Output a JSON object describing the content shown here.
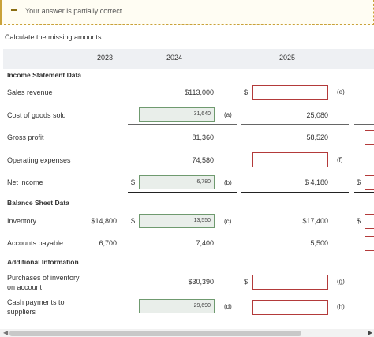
{
  "feedback": {
    "message": "Your answer is partially correct."
  },
  "instructions": "Calculate the missing amounts.",
  "columns": [
    "2023",
    "2024",
    "2025"
  ],
  "sections": {
    "income": "Income Statement Data",
    "balance": "Balance Sheet Data",
    "additional": "Additional Information"
  },
  "rows": {
    "sales": {
      "label": "Sales revenue",
      "v2024": "$113,000",
      "tag2025": "(e)"
    },
    "cogs": {
      "label": "Cost of goods sold",
      "v2024": "31,640",
      "tag2024": "(a)",
      "v2025": "25,080"
    },
    "gross": {
      "label": "Gross profit",
      "v2024": "81,360",
      "v2025": "58,520"
    },
    "opex": {
      "label": "Operating expenses",
      "v2024": "74,580",
      "tag2025": "(f)"
    },
    "net": {
      "label": "Net income",
      "v2024": "6,780",
      "tag2024": "(b)",
      "v2025": "$ 4,180"
    },
    "inventory": {
      "label": "Inventory",
      "v2023": "$14,800",
      "v2024": "13,550",
      "tag2024": "(c)",
      "v2025": "$17,400"
    },
    "payable": {
      "label": "Accounts payable",
      "v2023": "6,700",
      "v2024": "7,400",
      "v2025": "5,500"
    },
    "purchases": {
      "label": "Purchases of inventory on account",
      "v2024": "$30,390",
      "tag2025": "(g)"
    },
    "payments": {
      "label": "Cash payments to suppliers",
      "v2024": "29,690",
      "tag2024": "(d)",
      "tag2025": "(h)"
    }
  },
  "dollar_sign": "$",
  "colors": {
    "incorrect": "#b33a3a",
    "correct": "#6f9a6f",
    "warning": "#c9a23a"
  }
}
